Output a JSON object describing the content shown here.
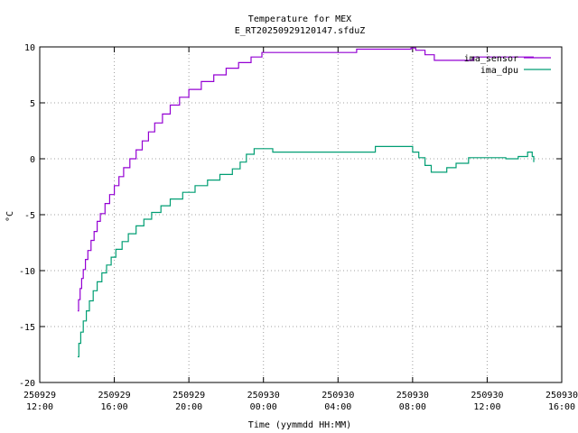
{
  "chart_data": {
    "type": "line",
    "title": "Temperature for MEX",
    "subtitle": "E_RT20250929120147.sfduZ",
    "xlabel": "Time (yymmdd HH:MM)",
    "ylabel": "°C",
    "xlim": [
      "2025-09-29 12:00",
      "2025-09-30 16:00"
    ],
    "ylim": [
      -20,
      10
    ],
    "grid": true,
    "legend_position": "top-right",
    "x_ticks": [
      {
        "x": "2025-09-29 12:00",
        "label_date": "250929",
        "label_time": "12:00"
      },
      {
        "x": "2025-09-29 16:00",
        "label_date": "250929",
        "label_time": "16:00"
      },
      {
        "x": "2025-09-29 20:00",
        "label_date": "250929",
        "label_time": "20:00"
      },
      {
        "x": "2025-09-30 00:00",
        "label_date": "250930",
        "label_time": "00:00"
      },
      {
        "x": "2025-09-30 04:00",
        "label_date": "250930",
        "label_time": "04:00"
      },
      {
        "x": "2025-09-30 08:00",
        "label_date": "250930",
        "label_time": "08:00"
      },
      {
        "x": "2025-09-30 12:00",
        "label_date": "250930",
        "label_time": "12:00"
      },
      {
        "x": "2025-09-30 16:00",
        "label_date": "250930",
        "label_time": "16:00"
      }
    ],
    "y_ticks": [
      {
        "y": 10,
        "label": "10"
      },
      {
        "y": 5,
        "label": "5"
      },
      {
        "y": 0,
        "label": "0"
      },
      {
        "y": -5,
        "label": "-5"
      },
      {
        "y": -10,
        "label": "-10"
      },
      {
        "y": -15,
        "label": "-15"
      },
      {
        "y": -20,
        "label": "-20"
      }
    ],
    "series": [
      {
        "name": "ima_sensor",
        "color": "#9400d3",
        "step": true,
        "points": [
          [
            "2025-09-29 14:02",
            -13.6
          ],
          [
            "2025-09-29 14:05",
            -12.6
          ],
          [
            "2025-09-29 14:10",
            -11.6
          ],
          [
            "2025-09-29 14:15",
            -10.7
          ],
          [
            "2025-09-29 14:20",
            -9.9
          ],
          [
            "2025-09-29 14:27",
            -9.0
          ],
          [
            "2025-09-29 14:35",
            -8.2
          ],
          [
            "2025-09-29 14:45",
            -7.3
          ],
          [
            "2025-09-29 14:55",
            -6.5
          ],
          [
            "2025-09-29 15:05",
            -5.6
          ],
          [
            "2025-09-29 15:15",
            -4.9
          ],
          [
            "2025-09-29 15:30",
            -4.0
          ],
          [
            "2025-09-29 15:45",
            -3.2
          ],
          [
            "2025-09-29 16:00",
            -2.4
          ],
          [
            "2025-09-29 16:15",
            -1.6
          ],
          [
            "2025-09-29 16:30",
            -0.8
          ],
          [
            "2025-09-29 16:50",
            0.0
          ],
          [
            "2025-09-29 17:10",
            0.8
          ],
          [
            "2025-09-29 17:30",
            1.6
          ],
          [
            "2025-09-29 17:50",
            2.4
          ],
          [
            "2025-09-29 18:10",
            3.2
          ],
          [
            "2025-09-29 18:35",
            4.0
          ],
          [
            "2025-09-29 19:00",
            4.8
          ],
          [
            "2025-09-29 19:30",
            5.5
          ],
          [
            "2025-09-29 20:00",
            6.2
          ],
          [
            "2025-09-29 20:40",
            6.9
          ],
          [
            "2025-09-29 21:20",
            7.5
          ],
          [
            "2025-09-29 22:00",
            8.1
          ],
          [
            "2025-09-29 22:40",
            8.6
          ],
          [
            "2025-09-29 23:20",
            9.1
          ],
          [
            "2025-09-29 23:55",
            9.5
          ],
          [
            "2025-09-30 05:00",
            9.8
          ],
          [
            "2025-09-30 07:55",
            9.9
          ],
          [
            "2025-09-30 08:10",
            9.7
          ],
          [
            "2025-09-30 08:40",
            9.3
          ],
          [
            "2025-09-30 09:10",
            8.8
          ],
          [
            "2025-09-30 10:40",
            8.8
          ],
          [
            "2025-09-30 11:15",
            9.1
          ],
          [
            "2025-09-30 14:30",
            9.1
          ]
        ]
      },
      {
        "name": "ima_dpu",
        "color": "#009e73",
        "step": true,
        "points": [
          [
            "2025-09-29 14:02",
            -17.7
          ],
          [
            "2025-09-29 14:06",
            -16.5
          ],
          [
            "2025-09-29 14:12",
            -15.5
          ],
          [
            "2025-09-29 14:20",
            -14.5
          ],
          [
            "2025-09-29 14:30",
            -13.6
          ],
          [
            "2025-09-29 14:40",
            -12.7
          ],
          [
            "2025-09-29 14:52",
            -11.8
          ],
          [
            "2025-09-29 15:05",
            -11.0
          ],
          [
            "2025-09-29 15:20",
            -10.2
          ],
          [
            "2025-09-29 15:35",
            -9.5
          ],
          [
            "2025-09-29 15:50",
            -8.8
          ],
          [
            "2025-09-29 16:05",
            -8.1
          ],
          [
            "2025-09-29 16:25",
            -7.4
          ],
          [
            "2025-09-29 16:45",
            -6.7
          ],
          [
            "2025-09-29 17:10",
            -6.0
          ],
          [
            "2025-09-29 17:35",
            -5.4
          ],
          [
            "2025-09-29 18:00",
            -4.8
          ],
          [
            "2025-09-29 18:30",
            -4.2
          ],
          [
            "2025-09-29 19:00",
            -3.6
          ],
          [
            "2025-09-29 19:40",
            -3.0
          ],
          [
            "2025-09-29 20:20",
            -2.4
          ],
          [
            "2025-09-29 21:00",
            -1.9
          ],
          [
            "2025-09-29 21:40",
            -1.4
          ],
          [
            "2025-09-29 22:20",
            -0.9
          ],
          [
            "2025-09-29 22:45",
            -0.3
          ],
          [
            "2025-09-29 23:05",
            0.4
          ],
          [
            "2025-09-29 23:30",
            0.9
          ],
          [
            "2025-09-30 00:30",
            0.6
          ],
          [
            "2025-09-30 03:40",
            0.6
          ],
          [
            "2025-09-30 06:00",
            1.1
          ],
          [
            "2025-09-30 08:00",
            0.6
          ],
          [
            "2025-09-30 08:20",
            0.1
          ],
          [
            "2025-09-30 08:40",
            -0.6
          ],
          [
            "2025-09-30 09:00",
            -1.2
          ],
          [
            "2025-09-30 09:50",
            -0.8
          ],
          [
            "2025-09-30 10:20",
            -0.4
          ],
          [
            "2025-09-30 11:00",
            0.1
          ],
          [
            "2025-09-30 13:00",
            0.0
          ],
          [
            "2025-09-30 13:40",
            0.2
          ],
          [
            "2025-09-30 14:10",
            0.6
          ],
          [
            "2025-09-30 14:25",
            0.2
          ],
          [
            "2025-09-30 14:30",
            -0.3
          ]
        ]
      }
    ]
  }
}
